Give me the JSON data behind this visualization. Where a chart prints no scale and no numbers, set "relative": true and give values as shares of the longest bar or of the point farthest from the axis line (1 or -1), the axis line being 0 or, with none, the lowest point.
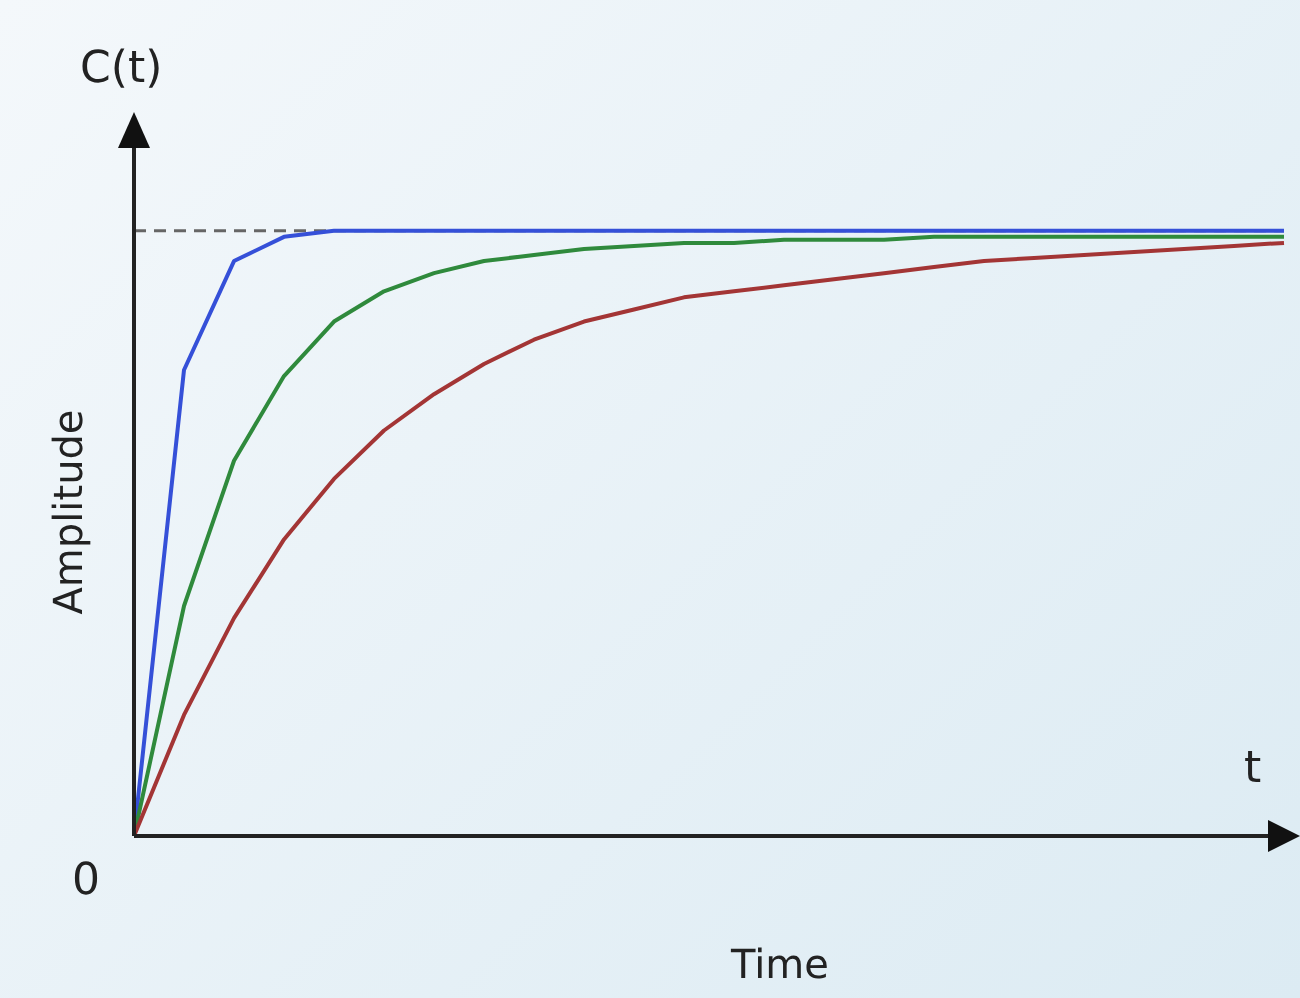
{
  "chart_data": {
    "type": "line",
    "relative": true,
    "xlabel": "Time",
    "ylabel": "Amplitude",
    "annotations": [
      "C(t)",
      "t",
      "0"
    ],
    "categories": [
      null,
      null,
      null,
      null,
      null,
      null,
      null,
      null,
      null,
      null,
      null,
      null,
      null,
      null,
      null,
      null,
      null,
      null,
      null,
      null,
      null,
      null,
      null,
      null
    ],
    "series": [
      {
        "color": "#3550d8",
        "values": [
          0,
          0.77,
          0.95,
          0.99,
          1,
          1,
          1,
          1,
          1,
          1,
          1,
          1,
          1,
          1,
          1,
          1,
          1,
          1,
          1,
          1,
          1,
          1,
          1,
          1
        ]
      },
      {
        "color": "#2f8a3c",
        "values": [
          0,
          0.38,
          0.62,
          0.76,
          0.85,
          0.9,
          0.93,
          0.95,
          0.96,
          0.97,
          0.975,
          0.98,
          0.98,
          0.985,
          0.985,
          0.985,
          0.99,
          0.99,
          0.99,
          0.99,
          0.99,
          0.99,
          0.99,
          0.99
        ]
      },
      {
        "color": "#a33535",
        "values": [
          0,
          0.2,
          0.36,
          0.49,
          0.59,
          0.67,
          0.73,
          0.78,
          0.82,
          0.85,
          0.87,
          0.89,
          0.9,
          0.91,
          0.92,
          0.93,
          0.94,
          0.95,
          0.955,
          0.96,
          0.965,
          0.97,
          0.975,
          0.98
        ]
      }
    ],
    "ref_lines": [
      {
        "axis": "y",
        "value": 1,
        "color": "#666666",
        "line_style": "dashed"
      }
    ],
    "line_style": "solid"
  }
}
